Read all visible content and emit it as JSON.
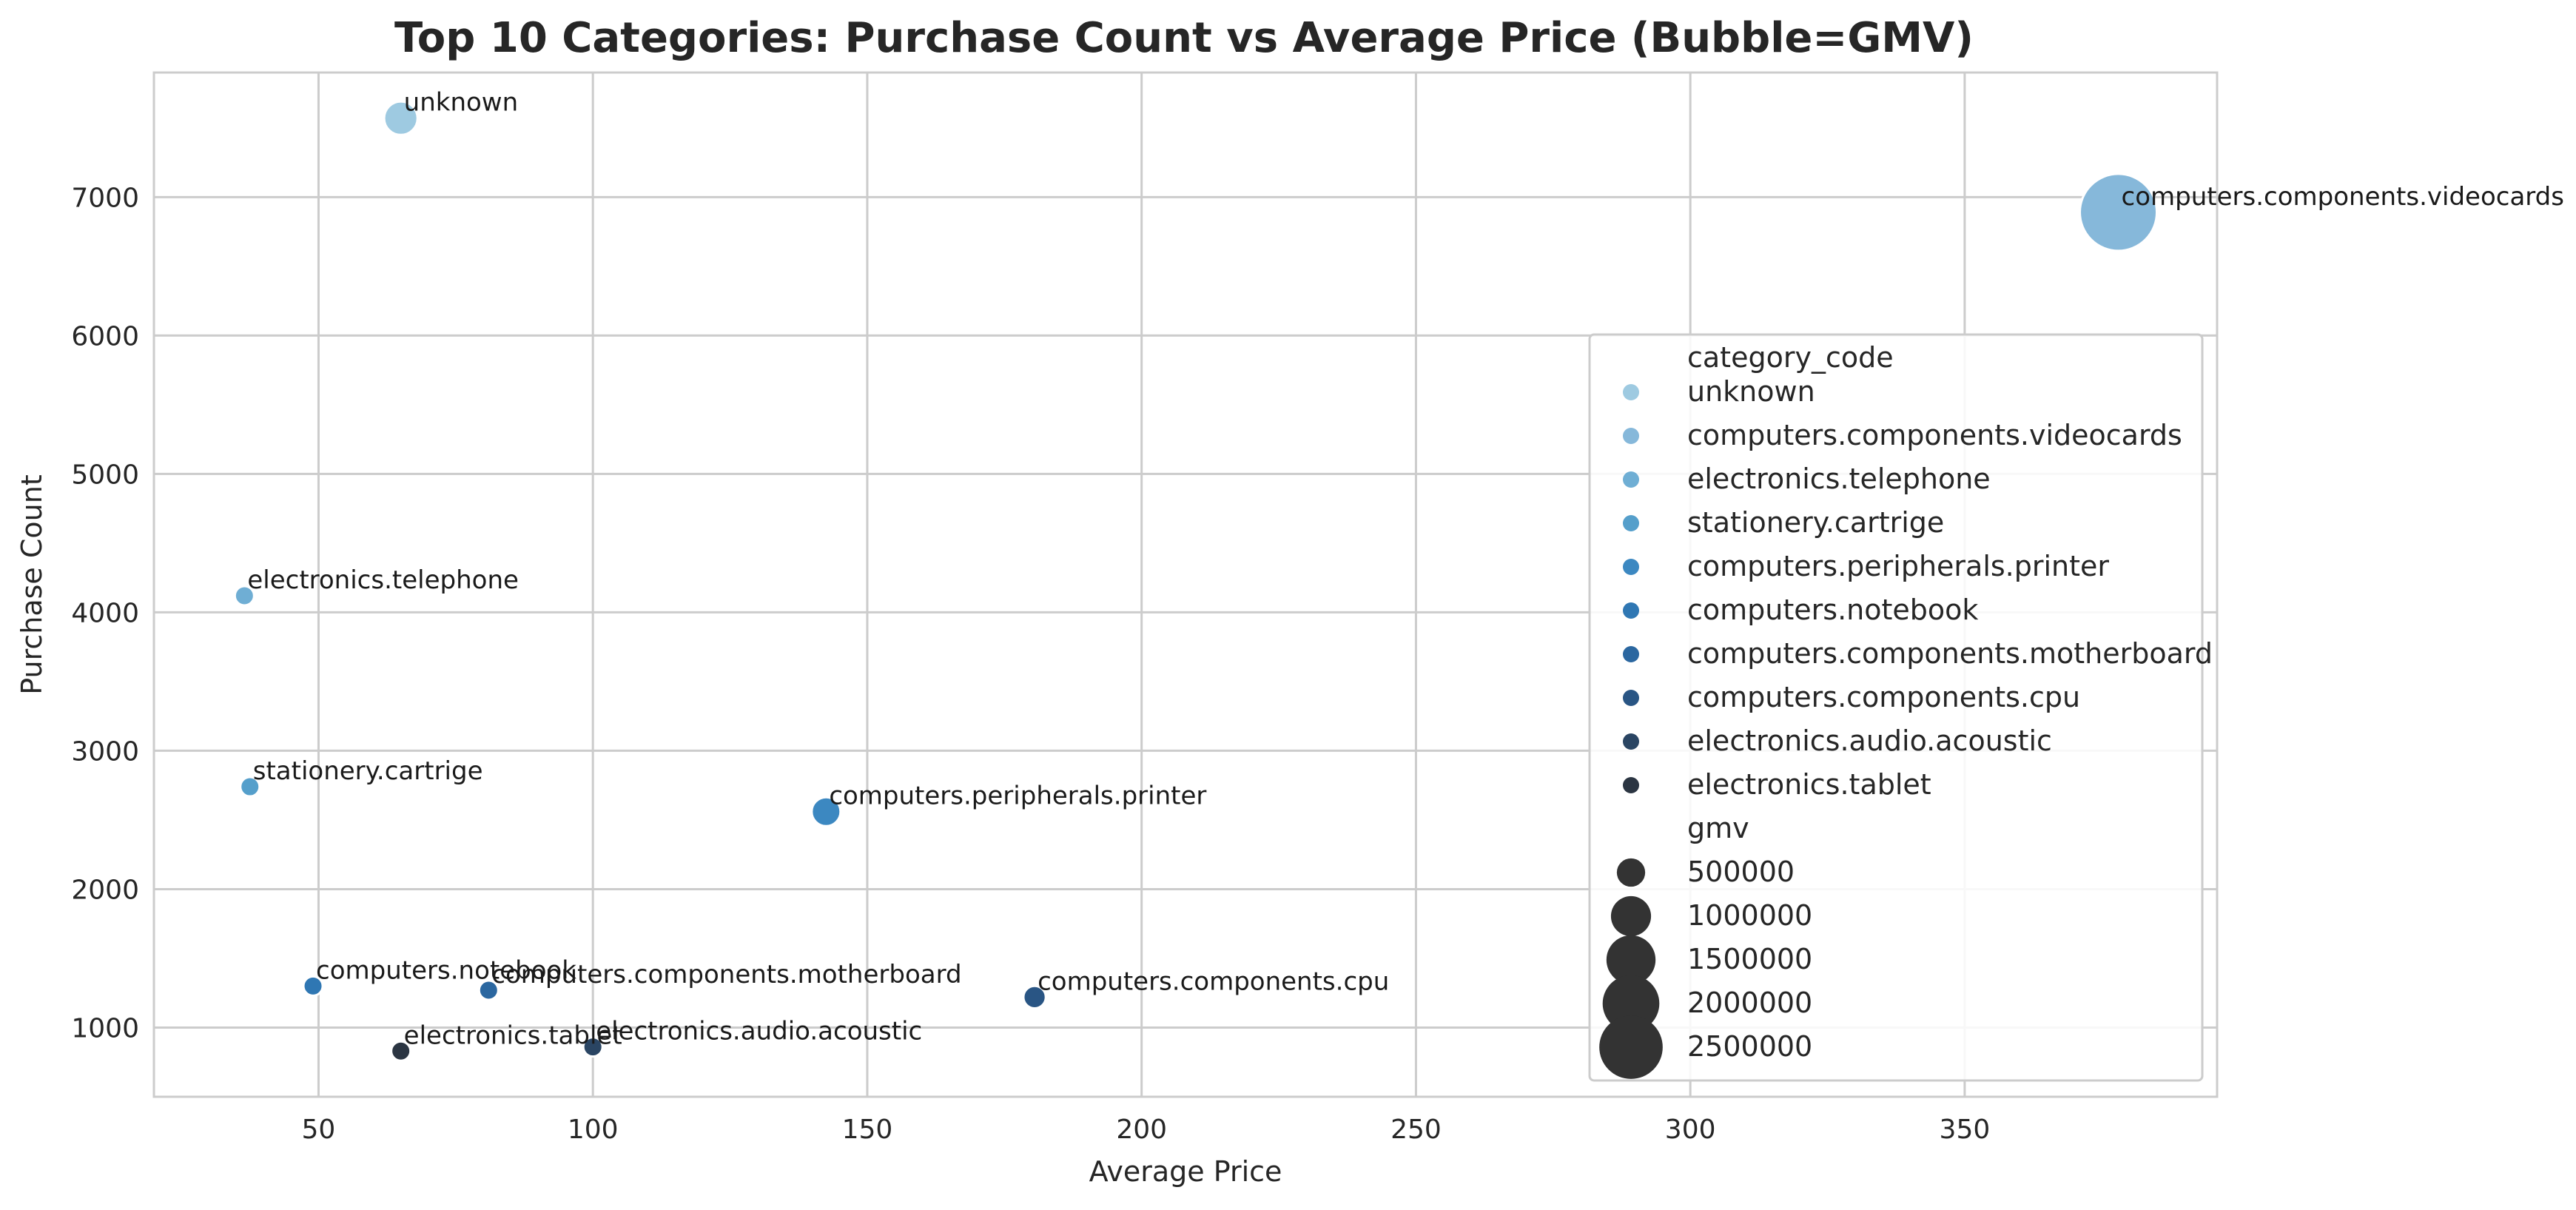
{
  "chart_data": {
    "type": "scatter",
    "title": "Top 10 Categories: Purchase Count vs Average Price (Bubble=GMV)",
    "xlabel": "Average Price",
    "ylabel": "Purchase Count",
    "xlim": [
      20,
      396
    ],
    "ylim": [
      500,
      7900
    ],
    "xticks": [
      50,
      100,
      150,
      200,
      250,
      300,
      350
    ],
    "yticks": [
      1000,
      2000,
      3000,
      4000,
      5000,
      6000,
      7000
    ],
    "grid": true,
    "legend_position": "lower-right",
    "hue_title": "category_code",
    "size_title": "gmv",
    "points": [
      {
        "label": "unknown",
        "x": 65,
        "y": 7570,
        "gmv": 490000,
        "color": "#9ecae1"
      },
      {
        "label": "computers.components.videocards",
        "x": 378,
        "y": 6890,
        "gmv": 2600000,
        "color": "#86b8da"
      },
      {
        "label": "electronics.telephone",
        "x": 36.5,
        "y": 4120,
        "gmv": 150000,
        "color": "#6faed4"
      },
      {
        "label": "stationery.cartrige",
        "x": 37.5,
        "y": 2740,
        "gmv": 100000,
        "color": "#559fcb"
      },
      {
        "label": "computers.peripherals.printer",
        "x": 142.5,
        "y": 2560,
        "gmv": 365000,
        "color": "#3c88c1"
      },
      {
        "label": "computers.notebook",
        "x": 49,
        "y": 1300,
        "gmv": 64000,
        "color": "#2f77b3"
      },
      {
        "label": "computers.components.motherboard",
        "x": 81,
        "y": 1270,
        "gmv": 103000,
        "color": "#2b67a0"
      },
      {
        "label": "computers.components.cpu",
        "x": 180.5,
        "y": 1220,
        "gmv": 220000,
        "color": "#295584"
      },
      {
        "label": "electronics.audio.acoustic",
        "x": 100,
        "y": 860,
        "gmv": 86000,
        "color": "#2a4563"
      },
      {
        "label": "electronics.tablet",
        "x": 65,
        "y": 830,
        "gmv": 54000,
        "color": "#2b3542"
      }
    ],
    "size_legend": [
      500000,
      1000000,
      1500000,
      2000000,
      2500000
    ],
    "size_legend_color": "#333333"
  }
}
